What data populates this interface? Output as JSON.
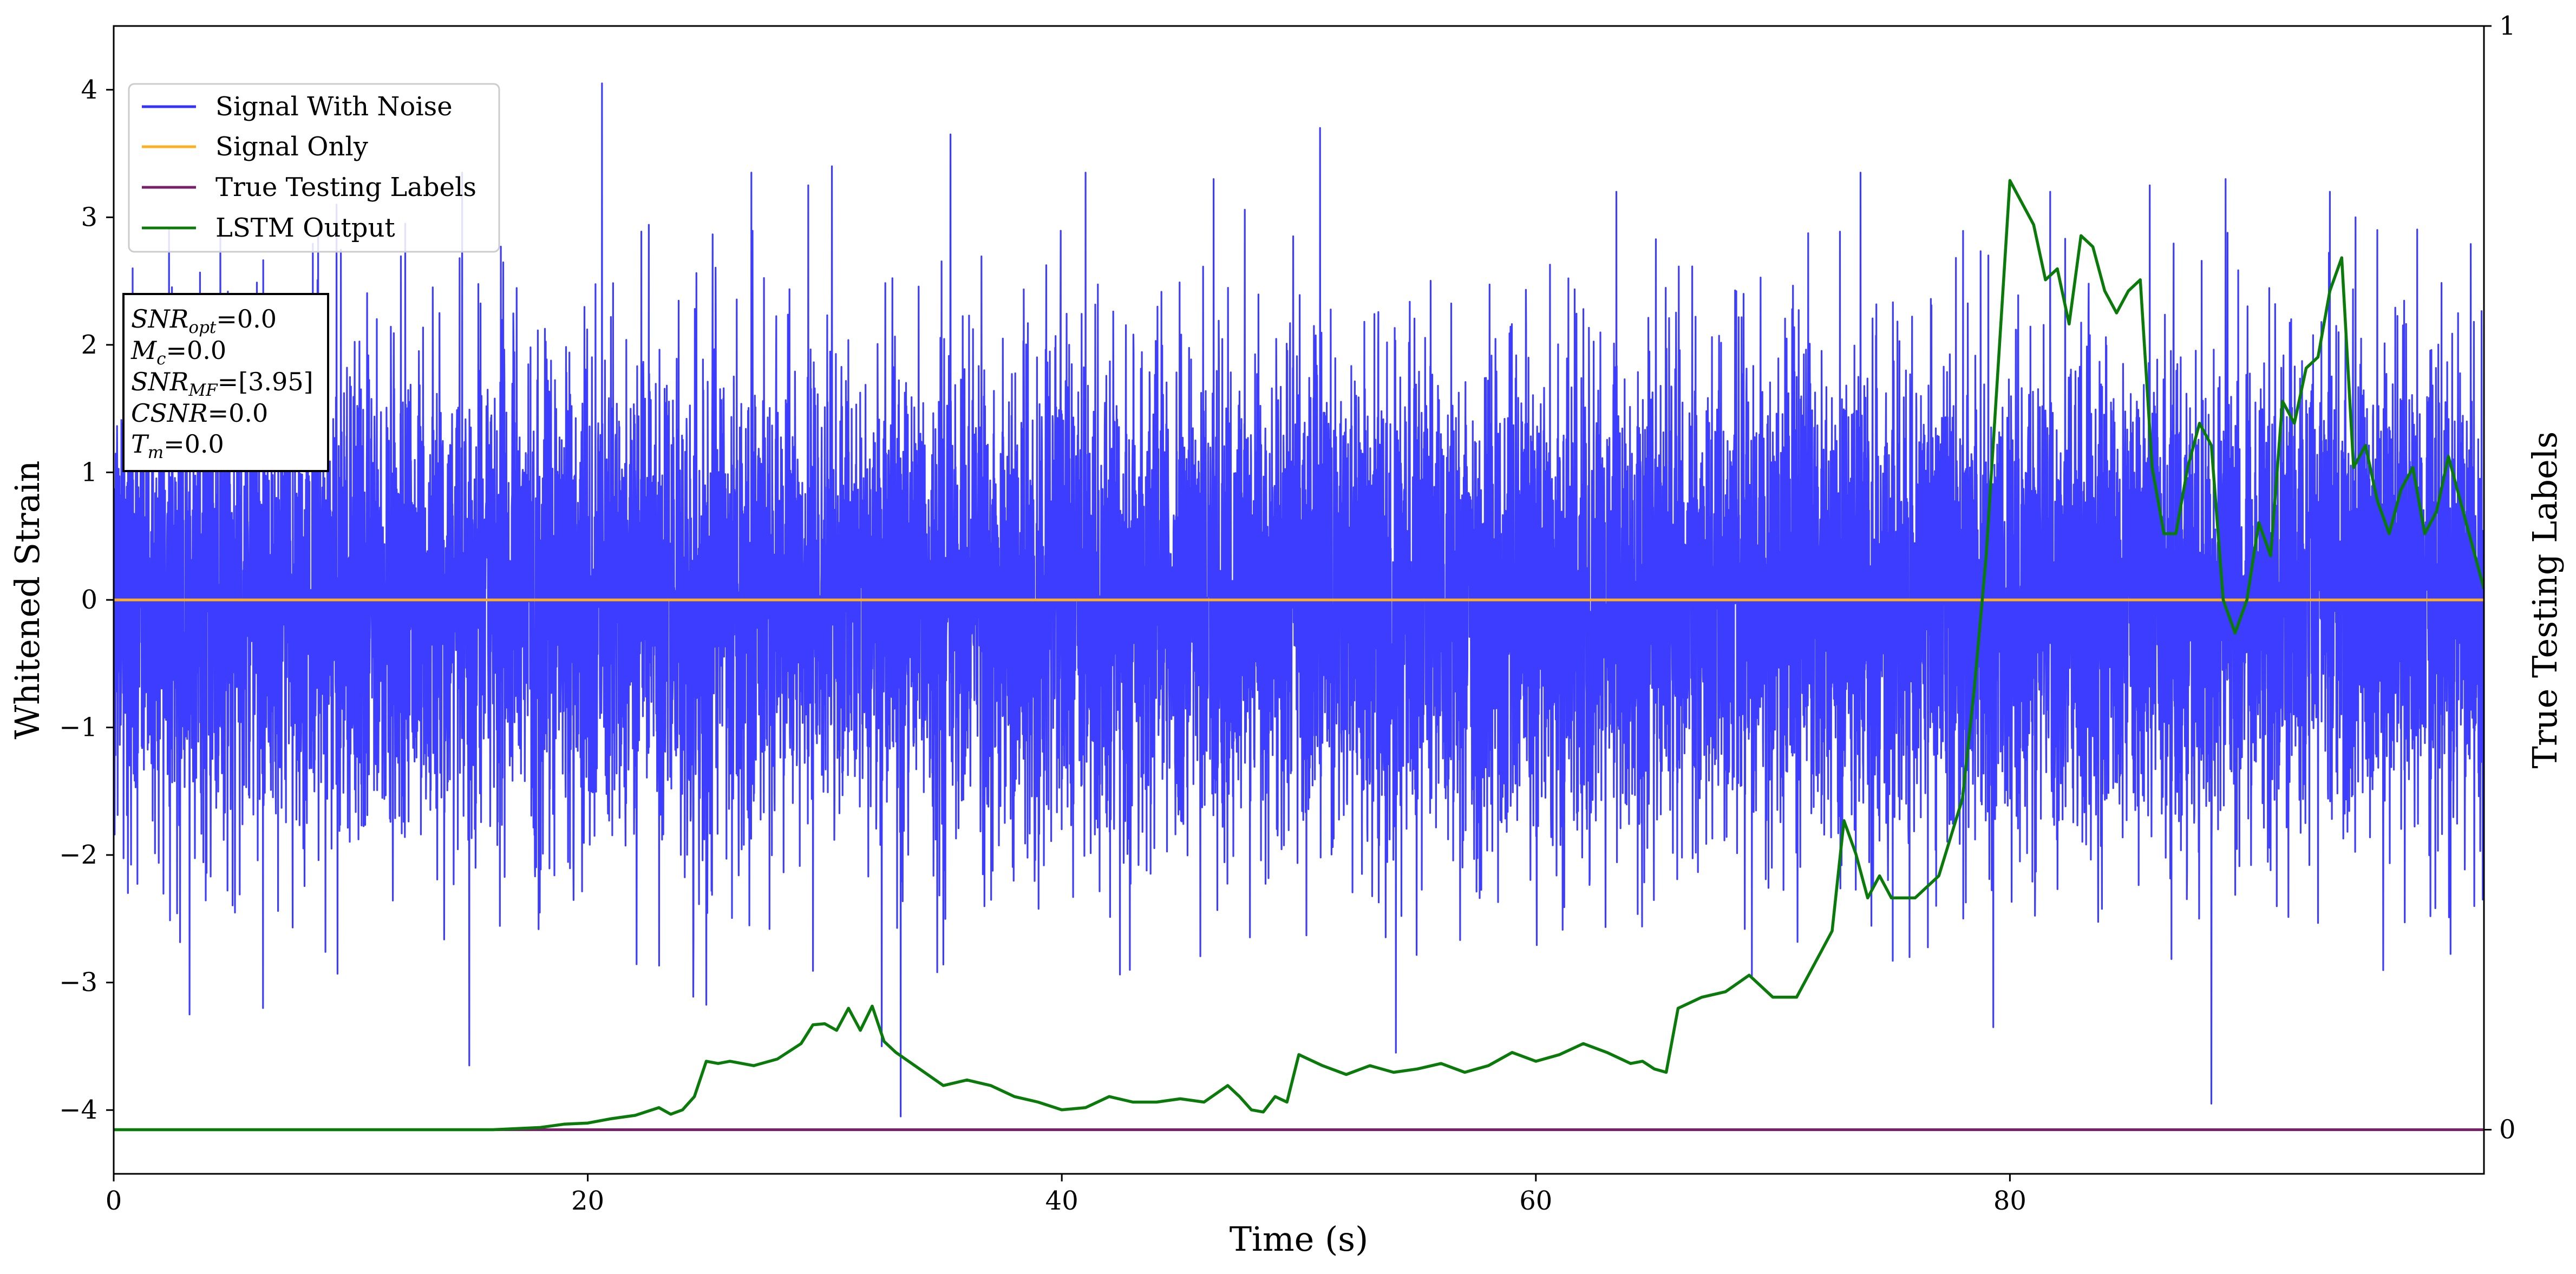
{
  "chart_data": {
    "type": "line",
    "xlabel": "Time (s)",
    "ylabel": "Whitened Strain",
    "ylabel_right": "True Testing Labels",
    "xlim": [
      0,
      100
    ],
    "ylim": [
      -4.5,
      4.5
    ],
    "ylim_right": [
      -0.04,
      1.0
    ],
    "x_ticks": [
      0,
      20,
      40,
      60,
      80
    ],
    "x_tick_labels": [
      "0",
      "20",
      "40",
      "60",
      "80"
    ],
    "y_ticks": [
      -4,
      -3,
      -2,
      -1,
      0,
      1,
      2,
      3,
      4
    ],
    "y_tick_labels": [
      "−4",
      "−3",
      "−2",
      "−1",
      "0",
      "1",
      "2",
      "3",
      "4"
    ],
    "y_right_ticks": [
      0,
      1
    ],
    "y_right_tick_labels": [
      "0",
      "1"
    ],
    "grid": false,
    "legend_position": "upper-left",
    "legend": [
      {
        "label": "Signal With Noise",
        "color": "#3333ff"
      },
      {
        "label": "Signal Only",
        "color": "#ffb020"
      },
      {
        "label": "True Testing Labels",
        "color": "#7a1f6a"
      },
      {
        "label": "LSTM Output",
        "color": "#0a7a0a"
      }
    ],
    "annotation_lines": [
      {
        "name": "SNR",
        "sub": "opt",
        "rest": "=0.0"
      },
      {
        "name": "M",
        "sub": "c",
        "rest": "=0.0"
      },
      {
        "name": "SNR",
        "sub": "MF",
        "rest": "=[3.95]"
      },
      {
        "name": "CSNR",
        "sub": "",
        "rest": "=0.0"
      },
      {
        "name": "T",
        "sub": "m",
        "rest": "=0.0"
      }
    ],
    "series": [
      {
        "name": "Signal With Noise",
        "axis": "left",
        "color": "#3333ff",
        "style": "dense noise, approx. N(0,1) whitened strain, bulk within about ±1.5 with spikes",
        "spikes": [
          {
            "x": 0.8,
            "y": 2.6
          },
          {
            "x": 3.2,
            "y": -3.25
          },
          {
            "x": 4.5,
            "y": 2.9
          },
          {
            "x": 6.3,
            "y": -3.2
          },
          {
            "x": 9.4,
            "y": 3.1
          },
          {
            "x": 12.3,
            "y": 2.95
          },
          {
            "x": 14.7,
            "y": 3.35
          },
          {
            "x": 15.0,
            "y": -3.65
          },
          {
            "x": 20.6,
            "y": 4.05
          },
          {
            "x": 26.9,
            "y": 3.35
          },
          {
            "x": 29.3,
            "y": 3.25
          },
          {
            "x": 30.3,
            "y": 3.4
          },
          {
            "x": 32.4,
            "y": -3.5
          },
          {
            "x": 33.2,
            "y": -4.05
          },
          {
            "x": 35.3,
            "y": 3.65
          },
          {
            "x": 41.0,
            "y": 3.35
          },
          {
            "x": 46.4,
            "y": 3.3
          },
          {
            "x": 50.9,
            "y": 3.7
          },
          {
            "x": 54.1,
            "y": -3.55
          },
          {
            "x": 63.4,
            "y": 3.2
          },
          {
            "x": 73.7,
            "y": 3.35
          },
          {
            "x": 79.3,
            "y": -3.35
          },
          {
            "x": 81.7,
            "y": 3.2
          },
          {
            "x": 85.9,
            "y": 3.25
          },
          {
            "x": 88.5,
            "y": -3.95
          },
          {
            "x": 89.1,
            "y": 3.3
          },
          {
            "x": 93.5,
            "y": 3.2
          },
          {
            "x": 95.5,
            "y": 2.9
          }
        ]
      },
      {
        "name": "Signal Only",
        "axis": "left",
        "color": "#ffb020",
        "x": [
          0,
          100
        ],
        "y": [
          0,
          0
        ]
      },
      {
        "name": "True Testing Labels",
        "axis": "right",
        "color": "#7a1f6a",
        "x": [
          0,
          100
        ],
        "y": [
          0,
          0
        ]
      },
      {
        "name": "LSTM Output",
        "axis": "right",
        "color": "#0a7a0a",
        "x": [
          0,
          16,
          18,
          19,
          20,
          21,
          22,
          23,
          23.5,
          24,
          24.5,
          25,
          25.5,
          26,
          27,
          28,
          29,
          29.5,
          30,
          30.5,
          31,
          31.5,
          32,
          32.5,
          33,
          34,
          35,
          36,
          37,
          38,
          39,
          40,
          41,
          42,
          43,
          44,
          45,
          46,
          47,
          47.5,
          48,
          48.5,
          49,
          49.5,
          50,
          51,
          52,
          53,
          54,
          55,
          56,
          57,
          58,
          59,
          60,
          61,
          62,
          63,
          64,
          64.5,
          65,
          65.5,
          66,
          67,
          68,
          69,
          70,
          71,
          72,
          72.5,
          73,
          73.5,
          74,
          74.5,
          75,
          76,
          77,
          78,
          78.5,
          79,
          80,
          81,
          81.5,
          82,
          82.5,
          83,
          83.5,
          84,
          84.5,
          85,
          85.5,
          86,
          86.5,
          87,
          87.5,
          88,
          88.5,
          89,
          89.5,
          90,
          90.5,
          91,
          91.5,
          92,
          92.5,
          93,
          93.5,
          94,
          94.5,
          95,
          95.5,
          96,
          96.5,
          97,
          97.5,
          98,
          98.5,
          99,
          99.5,
          100
        ],
        "y": [
          0.0,
          0.0,
          0.002,
          0.005,
          0.006,
          0.01,
          0.013,
          0.02,
          0.014,
          0.018,
          0.03,
          0.062,
          0.06,
          0.062,
          0.058,
          0.064,
          0.078,
          0.095,
          0.096,
          0.09,
          0.11,
          0.09,
          0.112,
          0.08,
          0.07,
          0.055,
          0.04,
          0.045,
          0.04,
          0.03,
          0.025,
          0.018,
          0.02,
          0.03,
          0.025,
          0.025,
          0.028,
          0.025,
          0.04,
          0.03,
          0.018,
          0.016,
          0.03,
          0.025,
          0.068,
          0.058,
          0.05,
          0.058,
          0.052,
          0.055,
          0.06,
          0.052,
          0.058,
          0.07,
          0.062,
          0.068,
          0.078,
          0.07,
          0.06,
          0.062,
          0.055,
          0.052,
          0.11,
          0.12,
          0.125,
          0.14,
          0.12,
          0.12,
          0.16,
          0.18,
          0.28,
          0.25,
          0.21,
          0.23,
          0.21,
          0.21,
          0.23,
          0.3,
          0.4,
          0.52,
          0.86,
          0.82,
          0.77,
          0.78,
          0.73,
          0.81,
          0.8,
          0.76,
          0.74,
          0.76,
          0.77,
          0.6,
          0.54,
          0.54,
          0.6,
          0.64,
          0.62,
          0.48,
          0.45,
          0.48,
          0.55,
          0.52,
          0.66,
          0.64,
          0.69,
          0.7,
          0.76,
          0.79,
          0.6,
          0.62,
          0.57,
          0.54,
          0.58,
          0.6,
          0.54,
          0.56,
          0.61,
          0.57,
          0.53,
          0.49
        ]
      }
    ]
  }
}
